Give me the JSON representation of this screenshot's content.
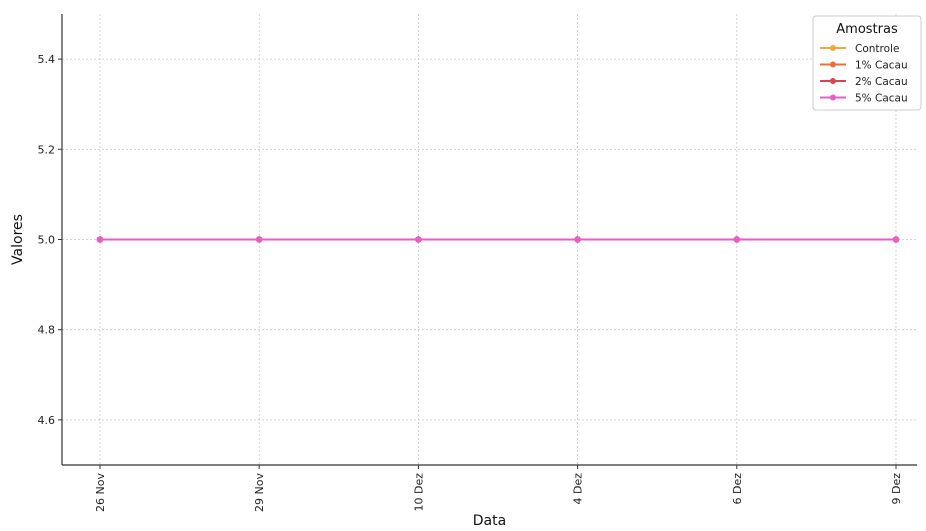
{
  "chart_data": {
    "type": "line",
    "title": "",
    "xlabel": "Data",
    "ylabel": "Valores",
    "categories": [
      "26 Nov",
      "29 Nov",
      "10 Dez",
      "4 Dez",
      "6 Dez",
      "9 Dez"
    ],
    "ylim": [
      4.5,
      5.5
    ],
    "yticks": [
      4.6,
      4.8,
      5.0,
      5.2,
      5.4
    ],
    "ytick_labels": [
      "4.6",
      "4.8",
      "5.0",
      "5.2",
      "5.4"
    ],
    "grid": true,
    "legend": {
      "title": "Amostras",
      "position": "top-right"
    },
    "series": [
      {
        "name": "Controle",
        "color": "#f2a93b",
        "values": [
          5.0,
          5.0,
          5.0,
          5.0,
          5.0,
          5.0
        ]
      },
      {
        "name": "1% Cacau",
        "color": "#e8703a",
        "values": [
          5.0,
          5.0,
          5.0,
          5.0,
          5.0,
          5.0
        ]
      },
      {
        "name": "2% Cacau",
        "color": "#d94452",
        "values": [
          5.0,
          5.0,
          5.0,
          5.0,
          5.0,
          5.0
        ]
      },
      {
        "name": "5% Cacau",
        "color": "#e55fc7",
        "values": [
          5.0,
          5.0,
          5.0,
          5.0,
          5.0,
          5.0
        ]
      }
    ]
  }
}
